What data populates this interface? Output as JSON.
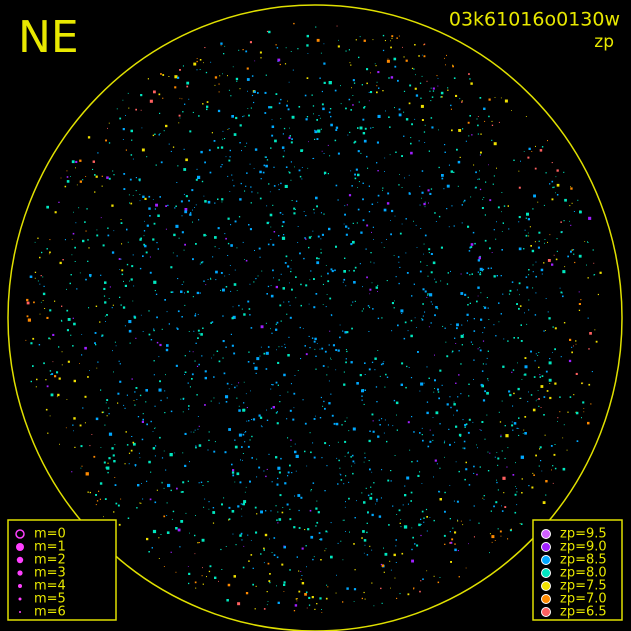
{
  "header": {
    "direction": "NE",
    "frame": "03k61016o0130w",
    "mode": "zp"
  },
  "legend_m": [
    {
      "label": "m=0"
    },
    {
      "label": "m=1"
    },
    {
      "label": "m=2"
    },
    {
      "label": "m=3"
    },
    {
      "label": "m=4"
    },
    {
      "label": "m=5"
    },
    {
      "label": "m=6"
    }
  ],
  "legend_zp": [
    {
      "label": "zp=9.5",
      "color": "#d060ff"
    },
    {
      "label": "zp=9.0",
      "color": "#a020ff"
    },
    {
      "label": "zp=8.5",
      "color": "#00a8ff"
    },
    {
      "label": "zp=8.0",
      "color": "#00e8c0"
    },
    {
      "label": "zp=7.5",
      "color": "#f0e000"
    },
    {
      "label": "zp=7.0",
      "color": "#ff8a00"
    },
    {
      "label": "zp=6.5",
      "color": "#ff6060"
    }
  ]
}
